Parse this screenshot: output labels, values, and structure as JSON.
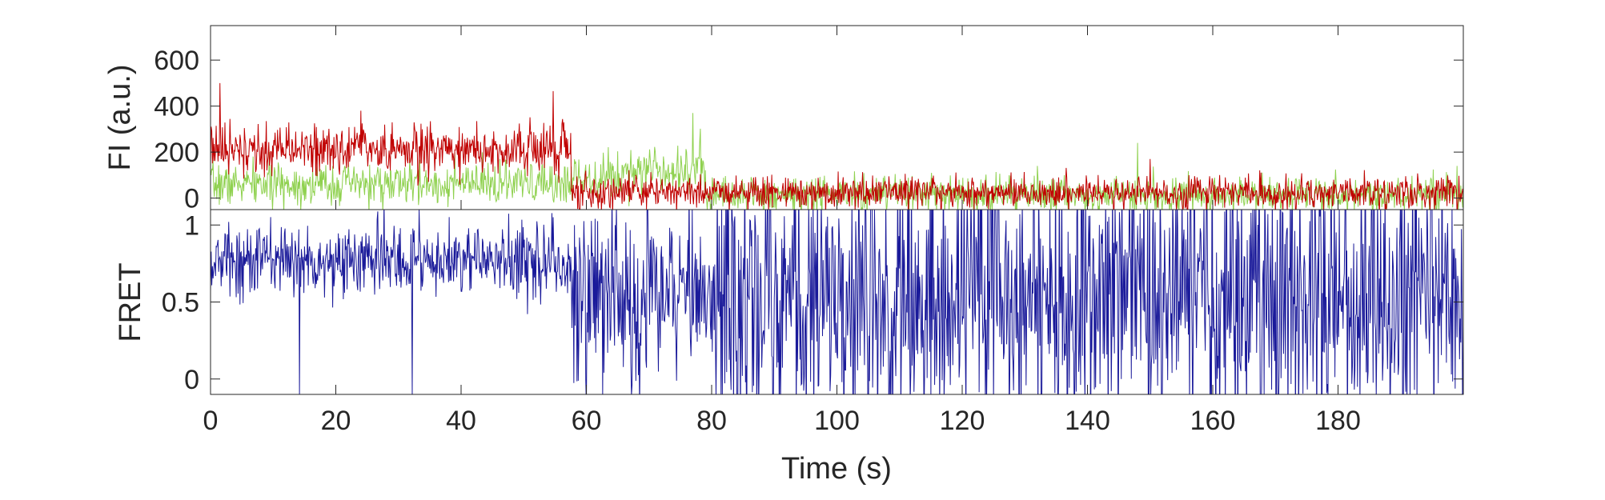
{
  "chart_data": [
    {
      "type": "line",
      "panel": "top",
      "ylabel": "FI (a.u.)",
      "xlim": [
        0,
        200
      ],
      "ylim": [
        -50,
        750
      ],
      "yticks": [
        0,
        200,
        400,
        600
      ],
      "ytick_labels": [
        "0",
        "200",
        "400",
        "600"
      ],
      "grid": false,
      "legend": "none",
      "seed": 7,
      "series": [
        {
          "color": "#8fd14f",
          "segments": [
            {
              "t": [
                0,
                57.5
              ],
              "mean": 60,
              "sd": 45
            },
            {
              "t": [
                57.5,
                66
              ],
              "mean": 95,
              "sd": 50
            },
            {
              "t": [
                66,
                79
              ],
              "mean": 130,
              "sd": 55
            },
            {
              "t": [
                79,
                200
              ],
              "mean": 15,
              "sd": 40
            }
          ],
          "peaks": [
            [
              77,
              370
            ],
            [
              148,
              240
            ],
            [
              132,
              140
            ],
            [
              199,
              140
            ]
          ]
        },
        {
          "color": "#c00000",
          "segments": [
            {
              "t": [
                0,
                57.5
              ],
              "mean": 210,
              "sd": 55
            },
            {
              "t": [
                57.5,
                200
              ],
              "mean": 25,
              "sd": 35
            }
          ],
          "peaks": [
            [
              1.5,
              500
            ],
            [
              54.7,
              465
            ],
            [
              24,
              380
            ],
            [
              150,
              170
            ]
          ]
        }
      ]
    },
    {
      "type": "line",
      "panel": "bottom",
      "ylabel": "FRET",
      "xlabel": "Time (s)",
      "xlim": [
        0,
        200
      ],
      "ylim": [
        -0.1,
        1.1
      ],
      "yticks": [
        0,
        0.5,
        1
      ],
      "ytick_labels": [
        "0",
        "0.5",
        "1"
      ],
      "xticks": [
        0,
        20,
        40,
        60,
        80,
        100,
        120,
        140,
        160,
        180
      ],
      "xtick_labels": [
        "0",
        "20",
        "40",
        "60",
        "80",
        "100",
        "120",
        "140",
        "160",
        "180"
      ],
      "grid": false,
      "legend": "none",
      "seed": 13,
      "series": [
        {
          "color": "#1a1a9a",
          "segments": [
            {
              "t": [
                0,
                57.5
              ],
              "mean": 0.77,
              "sd": 0.12
            },
            {
              "t": [
                57.5,
                80
              ],
              "mean": 0.55,
              "sd": 0.28
            },
            {
              "t": [
                80,
                200
              ],
              "mean": 0.55,
              "sd": 0.45
            }
          ],
          "dips": [
            14.2,
            32.2
          ]
        }
      ]
    }
  ]
}
